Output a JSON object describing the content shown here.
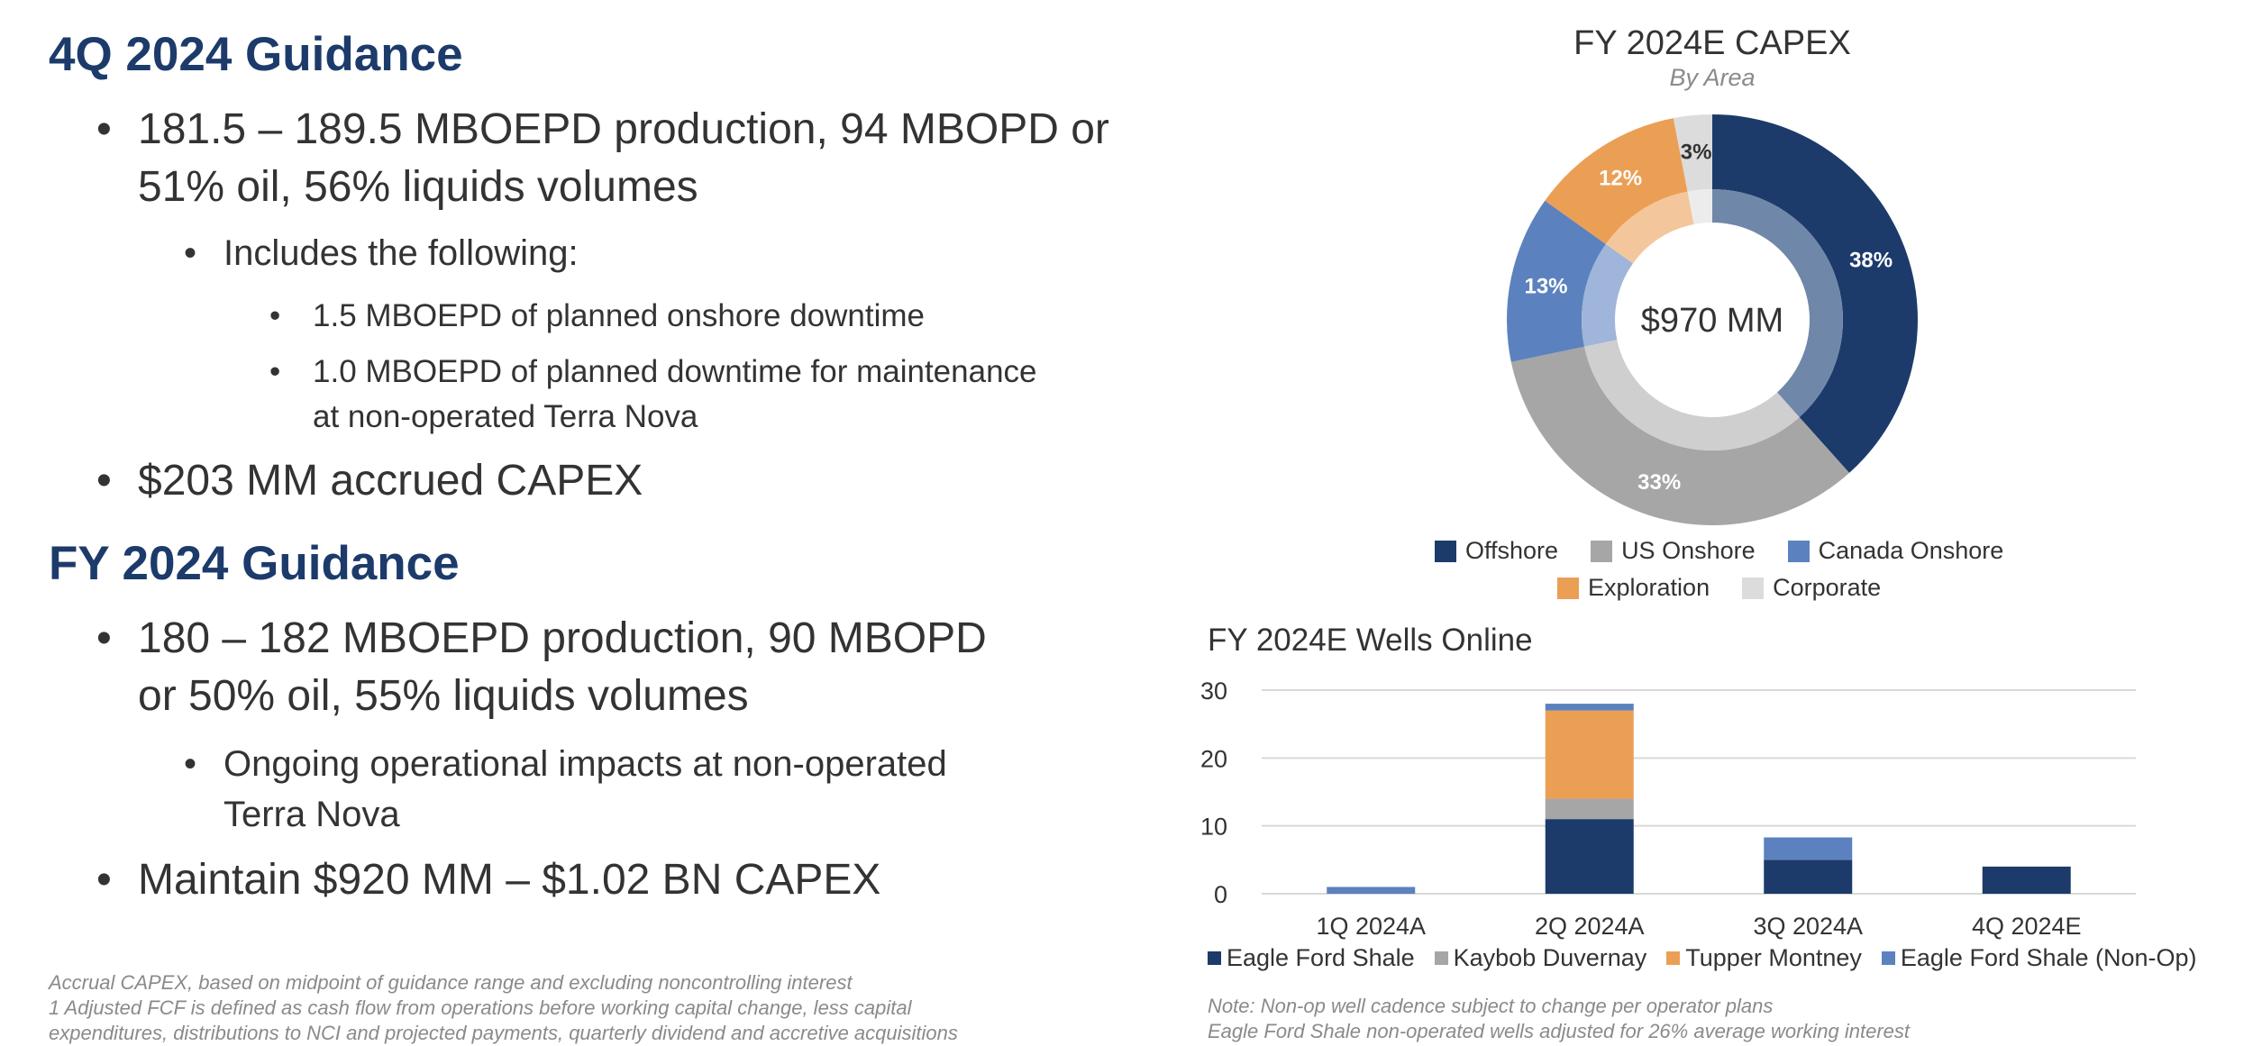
{
  "left": {
    "q4_heading": "4Q 2024 Guidance",
    "q4_b1_line1": "181.5 – 189.5 MBOEPD production, 94 MBOPD or",
    "q4_b1_line2": "51% oil, 56% liquids volumes",
    "q4_b2": "Includes the following:",
    "q4_b3a": "1.5 MBOEPD of planned onshore downtime",
    "q4_b3b_line1": "1.0 MBOEPD of planned downtime for maintenance",
    "q4_b3b_line2": "at non-operated Terra Nova",
    "q4_b4": "$203 MM accrued CAPEX",
    "fy_heading": "FY 2024 Guidance",
    "fy_b1_line1": "180 – 182 MBOEPD production, 90 MBOPD",
    "fy_b1_line2": "or 50% oil, 55% liquids volumes",
    "fy_b2_line1": "Ongoing operational impacts at non-operated",
    "fy_b2_line2": "Terra Nova",
    "fy_b3": "Maintain $920 MM – $1.02 BN CAPEX",
    "bullet": "•",
    "foot1": "Accrual CAPEX, based on midpoint of guidance range and excluding noncontrolling interest",
    "foot2": "1 Adjusted FCF is defined as cash flow from operations before working capital change, less capital",
    "foot3": "expenditures, distributions to NCI and projected payments, quarterly dividend and accretive acquisitions"
  },
  "chart_data": [
    {
      "type": "pie",
      "title": "FY 2024E CAPEX",
      "subtitle": "By Area",
      "center_label": "$970 MM",
      "slices": [
        {
          "name": "Offshore",
          "value": 38,
          "label": "38%",
          "color": "#1c3b6b",
          "inner_color": "#6f87a8"
        },
        {
          "name": "US Onshore",
          "value": 33,
          "label": "33%",
          "color": "#a6a6a6",
          "inner_color": "#cfcfcf"
        },
        {
          "name": "Canada Onshore",
          "value": 13,
          "label": "13%",
          "color": "#5b82be",
          "inner_color": "#9fb5d9"
        },
        {
          "name": "Exploration",
          "value": 12,
          "label": "12%",
          "color": "#eb9f55",
          "inner_color": "#f3c79b"
        },
        {
          "name": "Corporate",
          "value": 3,
          "label": "3%",
          "color": "#dcdcdc",
          "inner_color": "#ececec"
        }
      ],
      "legend": "bottom"
    },
    {
      "type": "bar",
      "stacked": true,
      "title": "FY 2024E Wells Online",
      "categories": [
        "1Q 2024A",
        "2Q 2024A",
        "3Q 2024A",
        "4Q 2024E"
      ],
      "series": [
        {
          "name": "Eagle Ford Shale",
          "values": [
            0,
            11,
            5,
            4
          ],
          "color": "#1c3b6b"
        },
        {
          "name": "Kaybob Duvernay",
          "values": [
            0,
            3,
            0,
            0
          ],
          "color": "#a6a6a6"
        },
        {
          "name": "Tupper Montney",
          "values": [
            0,
            13,
            0,
            0
          ],
          "color": "#eb9f55"
        },
        {
          "name": "Eagle Ford Shale (Non-Op)",
          "values": [
            1,
            1,
            3.3,
            0
          ],
          "color": "#5b82be"
        }
      ],
      "ylim": [
        0,
        30
      ],
      "yticks": [
        "0",
        "10",
        "20",
        "30"
      ],
      "grid": true,
      "legend": "bottom",
      "notes": [
        "Note: Non-op well cadence subject to change per operator plans",
        "Eagle Ford Shale non-operated wells adjusted for 26% average working interest"
      ]
    }
  ]
}
